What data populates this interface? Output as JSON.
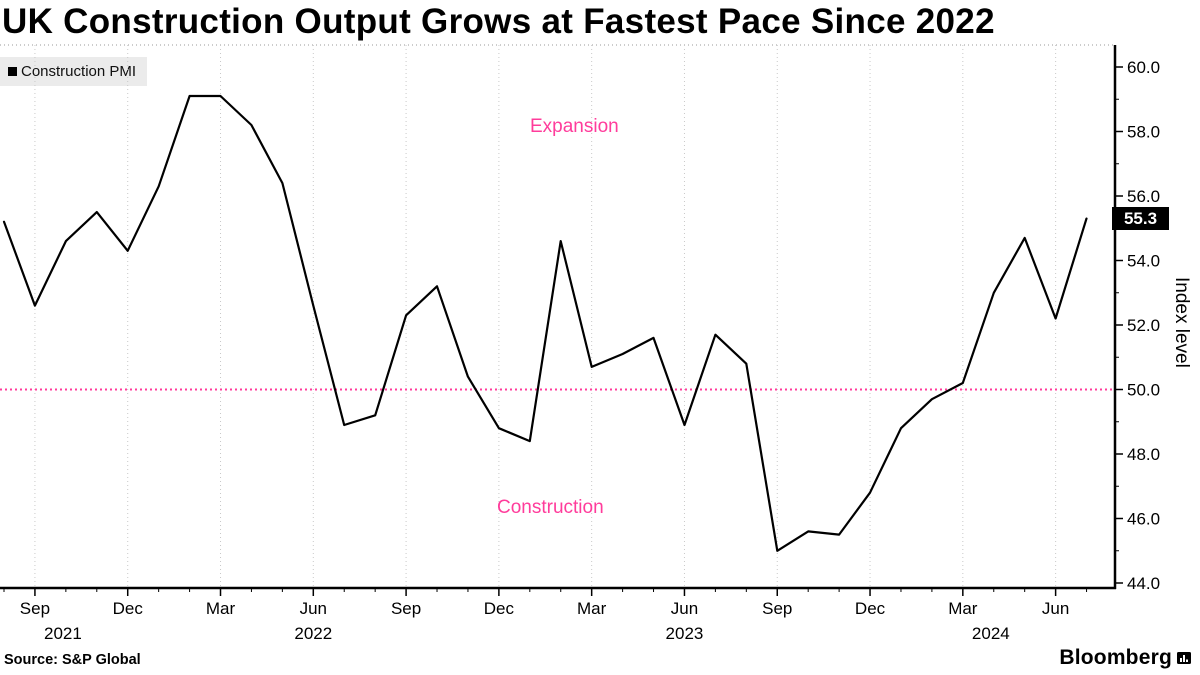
{
  "title": "UK Construction Output Grows at Fastest Pace Since 2022",
  "legend": {
    "label": "Construction PMI",
    "swatch_color": "#000000"
  },
  "source": "Source: S&P Global",
  "brand": {
    "name": "Bloomberg",
    "icon": "bars-icon"
  },
  "chart_data": {
    "type": "line",
    "title": "UK Construction Output Grows at Fastest Pace Since 2022",
    "ylabel": "Index level",
    "ylim": [
      43.8,
      60.7
    ],
    "yticks": [
      44,
      46,
      48,
      50,
      52,
      54,
      56,
      58,
      60
    ],
    "grid": "vertical-dotted",
    "legend_position": "top-left",
    "x": [
      "Aug 2021",
      "Sep 2021",
      "Oct 2021",
      "Nov 2021",
      "Dec 2021",
      "Jan 2022",
      "Feb 2022",
      "Mar 2022",
      "Apr 2022",
      "May 2022",
      "Jun 2022",
      "Jul 2022",
      "Aug 2022",
      "Sep 2022",
      "Oct 2022",
      "Nov 2022",
      "Dec 2022",
      "Jan 2023",
      "Feb 2023",
      "Mar 2023",
      "Apr 2023",
      "May 2023",
      "Jun 2023",
      "Jul 2023",
      "Aug 2023",
      "Sep 2023",
      "Oct 2023",
      "Nov 2023",
      "Dec 2023",
      "Jan 2024",
      "Feb 2024",
      "Mar 2024",
      "Apr 2024",
      "May 2024",
      "Jun 2024",
      "Jul 2024"
    ],
    "x_ticks": [
      "Sep",
      "Dec",
      "Mar",
      "Jun",
      "Sep",
      "Dec",
      "Mar",
      "Jun",
      "Sep",
      "Dec",
      "Mar",
      "Jun"
    ],
    "year_labels": [
      {
        "label": "2021",
        "tick": 0,
        "dx": 28
      },
      {
        "label": "2022",
        "tick": 3,
        "dx": 0
      },
      {
        "label": "2023",
        "tick": 7,
        "dx": 0
      },
      {
        "label": "2024",
        "tick": 10,
        "dx": 28
      }
    ],
    "series": [
      {
        "name": "Construction PMI",
        "color": "#000000",
        "values": [
          55.2,
          52.6,
          54.6,
          55.5,
          54.3,
          56.3,
          59.1,
          59.1,
          58.2,
          56.4,
          52.6,
          48.9,
          49.2,
          52.3,
          53.2,
          50.4,
          48.8,
          48.4,
          54.6,
          50.7,
          51.1,
          51.6,
          48.9,
          51.7,
          50.8,
          45.0,
          45.6,
          45.5,
          46.8,
          48.8,
          49.7,
          50.2,
          53.0,
          54.7,
          52.2,
          55.3
        ]
      }
    ],
    "reference_line": {
      "value": 50.0,
      "color": "#ff3c9b",
      "style": "dotted"
    },
    "last_value": 55.3,
    "last_value_label": "55.3",
    "annotations": [
      {
        "text": "Expansion",
        "color": "#ff3c9b",
        "region": "above-50"
      },
      {
        "text": "Construction",
        "color": "#ff3c9b",
        "region": "below-50"
      }
    ]
  }
}
